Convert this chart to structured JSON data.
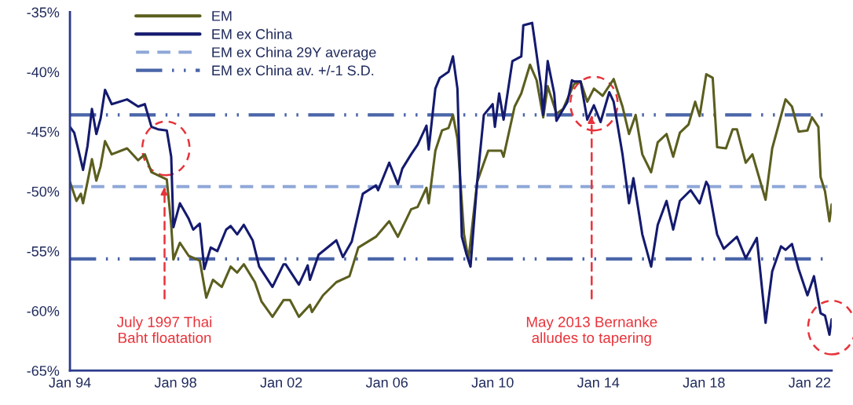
{
  "chart_data": {
    "type": "line",
    "xlim": [
      "1994-01",
      "2022-11"
    ],
    "ylim": [
      -65,
      -35
    ],
    "xticks": [
      {
        "value": "1994-01",
        "label": "Jan 94"
      },
      {
        "value": "1998-01",
        "label": "Jan 98"
      },
      {
        "value": "2002-01",
        "label": "Jan 02"
      },
      {
        "value": "2006-01",
        "label": "Jan 06"
      },
      {
        "value": "2010-01",
        "label": "Jan 10"
      },
      {
        "value": "2014-01",
        "label": "Jan 14"
      },
      {
        "value": "2018-01",
        "label": "Jan 18"
      },
      {
        "value": "2022-01",
        "label": "Jan 22"
      }
    ],
    "yticks": [
      {
        "value": -65,
        "label": "-65%"
      },
      {
        "value": -60,
        "label": "-60%"
      },
      {
        "value": -55,
        "label": "-55%"
      },
      {
        "value": -50,
        "label": "-50%"
      },
      {
        "value": -45,
        "label": "-45%"
      },
      {
        "value": -40,
        "label": "-40%"
      },
      {
        "value": -35,
        "label": "-35%"
      }
    ],
    "grid": false,
    "legend": "top left",
    "line_style": "solid",
    "marker": "none",
    "series": [
      {
        "name": "EM",
        "color": "#5b5e1e",
        "x": [
          "1994-01",
          "1994-04",
          "1994-06",
          "1994-07",
          "1994-09",
          "1994-11",
          "1995-01",
          "1995-03",
          "1995-05",
          "1995-08",
          "1996-03",
          "1996-08",
          "1996-11",
          "1997-02",
          "1997-09",
          "1997-11",
          "1997-12",
          "1998-03",
          "1998-07",
          "1998-12",
          "1999-03",
          "1999-06",
          "1999-10",
          "2000-02",
          "2000-05",
          "2000-08",
          "2001-01",
          "2001-04",
          "2001-09",
          "2002-02",
          "2002-05",
          "2002-09",
          "2003-02",
          "2003-03",
          "2003-08",
          "2004-02",
          "2004-08",
          "2004-12",
          "2005-08",
          "2006-02",
          "2006-06",
          "2006-12",
          "2007-03",
          "2007-07",
          "2007-08",
          "2007-11",
          "2008-02",
          "2008-05",
          "2008-07",
          "2008-09",
          "2008-12",
          "2009-02",
          "2009-06",
          "2009-11",
          "2010-02",
          "2010-05",
          "2010-06",
          "2010-11",
          "2011-02",
          "2011-06",
          "2011-09",
          "2011-12",
          "2012-02",
          "2012-06",
          "2012-09",
          "2013-01",
          "2013-02",
          "2013-05",
          "2013-08",
          "2013-11",
          "2014-03",
          "2014-08",
          "2014-12",
          "2015-03",
          "2015-06",
          "2015-09",
          "2016-01",
          "2016-04",
          "2016-08",
          "2016-11",
          "2017-02",
          "2017-06",
          "2017-09",
          "2017-11",
          "2018-02",
          "2018-05",
          "2018-07",
          "2018-11",
          "2019-02",
          "2019-04",
          "2019-08",
          "2019-11",
          "2020-05",
          "2020-08",
          "2021-02",
          "2021-05",
          "2021-08",
          "2021-12",
          "2022-02",
          "2022-05",
          "2022-06",
          "2022-08",
          "2022-10",
          "2022-11"
        ],
        "values": [
          -49.2,
          -50.8,
          -50.2,
          -51.0,
          -49.2,
          -47.3,
          -49.1,
          -47.9,
          -45.8,
          -46.9,
          -46.4,
          -47.4,
          -46.9,
          -48.4,
          -49.0,
          -52.8,
          -55.7,
          -54.3,
          -55.4,
          -55.8,
          -58.9,
          -57.4,
          -58.0,
          -56.3,
          -56.8,
          -56.1,
          -57.6,
          -59.2,
          -60.5,
          -59.1,
          -59.1,
          -60.5,
          -59.5,
          -60.1,
          -58.7,
          -57.6,
          -57.1,
          -54.7,
          -53.8,
          -52.5,
          -53.8,
          -51.5,
          -51.3,
          -49.7,
          -51.0,
          -46.6,
          -44.9,
          -44.7,
          -43.6,
          -45.6,
          -53.6,
          -55.7,
          -49.2,
          -46.6,
          -46.6,
          -46.6,
          -47.1,
          -42.9,
          -41.8,
          -39.4,
          -40.7,
          -43.8,
          -41.2,
          -43.5,
          -43.1,
          -41.4,
          -41.0,
          -40.8,
          -42.5,
          -41.4,
          -42.0,
          -40.6,
          -42.9,
          -45.2,
          -43.6,
          -46.9,
          -48.4,
          -45.9,
          -45.2,
          -47.1,
          -45.1,
          -44.4,
          -42.5,
          -43.7,
          -40.2,
          -40.5,
          -46.3,
          -46.4,
          -44.8,
          -44.8,
          -47.6,
          -46.9,
          -50.7,
          -46.4,
          -42.3,
          -42.9,
          -45.0,
          -44.9,
          -43.8,
          -44.6,
          -48.8,
          -50.0,
          -52.5,
          -51.1
        ]
      },
      {
        "name": "EM ex China",
        "color": "#141a6e",
        "x": [
          "1994-01",
          "1994-03",
          "1994-05",
          "1994-07",
          "1994-09",
          "1994-11",
          "1995-01",
          "1995-03",
          "1995-05",
          "1995-08",
          "1996-03",
          "1996-08",
          "1996-11",
          "1997-02",
          "1997-05",
          "1997-09",
          "1997-11",
          "1997-12",
          "1998-03",
          "1998-07",
          "1998-09",
          "1998-12",
          "1999-02",
          "1999-05",
          "1999-08",
          "1999-12",
          "2000-02",
          "2000-05",
          "2000-08",
          "2000-12",
          "2001-03",
          "2001-09",
          "2002-02",
          "2002-03",
          "2002-09",
          "2003-01",
          "2003-02",
          "2003-06",
          "2004-02",
          "2004-05",
          "2004-09",
          "2005-02",
          "2005-08",
          "2005-09",
          "2006-02",
          "2006-06",
          "2006-08",
          "2006-12",
          "2007-03",
          "2007-07",
          "2007-08",
          "2007-11",
          "2008-01",
          "2008-05",
          "2008-07",
          "2008-09",
          "2008-11",
          "2009-01",
          "2009-03",
          "2009-06",
          "2009-09",
          "2010-01",
          "2010-02",
          "2010-04",
          "2010-06",
          "2010-10",
          "2011-02",
          "2011-03",
          "2011-07",
          "2011-08",
          "2011-11",
          "2011-12",
          "2012-02",
          "2012-05",
          "2012-06",
          "2012-11",
          "2013-01",
          "2013-02",
          "2013-05",
          "2013-08",
          "2013-11",
          "2014-02",
          "2014-06",
          "2014-08",
          "2014-12",
          "2015-03",
          "2015-05",
          "2015-09",
          "2016-01",
          "2016-04",
          "2016-08",
          "2016-11",
          "2017-02",
          "2017-07",
          "2017-11",
          "2018-02",
          "2018-03",
          "2018-07",
          "2018-10",
          "2019-04",
          "2019-08",
          "2020-01",
          "2020-05",
          "2020-08",
          "2020-12",
          "2021-02",
          "2021-05",
          "2021-08",
          "2021-12",
          "2022-03",
          "2022-06",
          "2022-08",
          "2022-10",
          "2022-11"
        ],
        "values": [
          -44.6,
          -45.1,
          -46.6,
          -48.2,
          -46.2,
          -43.1,
          -45.2,
          -43.9,
          -41.5,
          -42.7,
          -42.3,
          -42.9,
          -42.7,
          -44.6,
          -44.8,
          -44.9,
          -47.1,
          -53.0,
          -51.0,
          -52.3,
          -53.2,
          -52.7,
          -56.5,
          -54.7,
          -55.0,
          -53.2,
          -52.9,
          -53.6,
          -52.8,
          -54.1,
          -56.3,
          -58.0,
          -56.1,
          -56.1,
          -57.8,
          -56.2,
          -57.4,
          -55.3,
          -54.1,
          -55.5,
          -54.2,
          -50.2,
          -49.5,
          -49.9,
          -47.6,
          -49.4,
          -48.1,
          -46.9,
          -46.1,
          -44.5,
          -46.5,
          -41.4,
          -40.5,
          -40.0,
          -38.7,
          -41.4,
          -53.8,
          -55.2,
          -56.3,
          -49.2,
          -43.6,
          -42.7,
          -44.6,
          -41.8,
          -44.0,
          -39.1,
          -38.7,
          -36.1,
          -35.9,
          -37.2,
          -41.2,
          -43.6,
          -39.1,
          -41.8,
          -44.1,
          -42.5,
          -40.7,
          -40.8,
          -40.8,
          -44.0,
          -42.8,
          -44.2,
          -41.7,
          -42.5,
          -46.9,
          -51.0,
          -48.9,
          -53.6,
          -56.3,
          -52.8,
          -50.8,
          -53.2,
          -50.8,
          -49.9,
          -51.0,
          -49.2,
          -49.5,
          -53.6,
          -54.8,
          -53.8,
          -55.6,
          -53.9,
          -61.0,
          -56.7,
          -54.6,
          -54.9,
          -54.4,
          -56.5,
          -58.7,
          -57.1,
          -60.2,
          -60.4,
          -62.0,
          -60.7
        ]
      }
    ],
    "ref_lines": [
      {
        "axis": "y",
        "value": -49.6,
        "label": "EM ex China 29Y average",
        "color": "#8fa8d8",
        "line_style": "dashed"
      },
      {
        "axis": "y",
        "value": -43.6,
        "label": "EM ex China av. +/-1 S.D.",
        "color": "#4a65a8",
        "line_style": "dashdotdot"
      },
      {
        "axis": "y",
        "value": -55.65,
        "color": "#4a65a8",
        "line_style": "dashdotdot"
      }
    ],
    "annotations": [
      {
        "text": "July 1997 Thai\nBaht floatation",
        "x": "1997-08",
        "y": -49.6
      },
      {
        "text": "May 2013 Bernanke\nalludes to tapering",
        "x": "2013-10",
        "y": -43.6
      }
    ]
  }
}
